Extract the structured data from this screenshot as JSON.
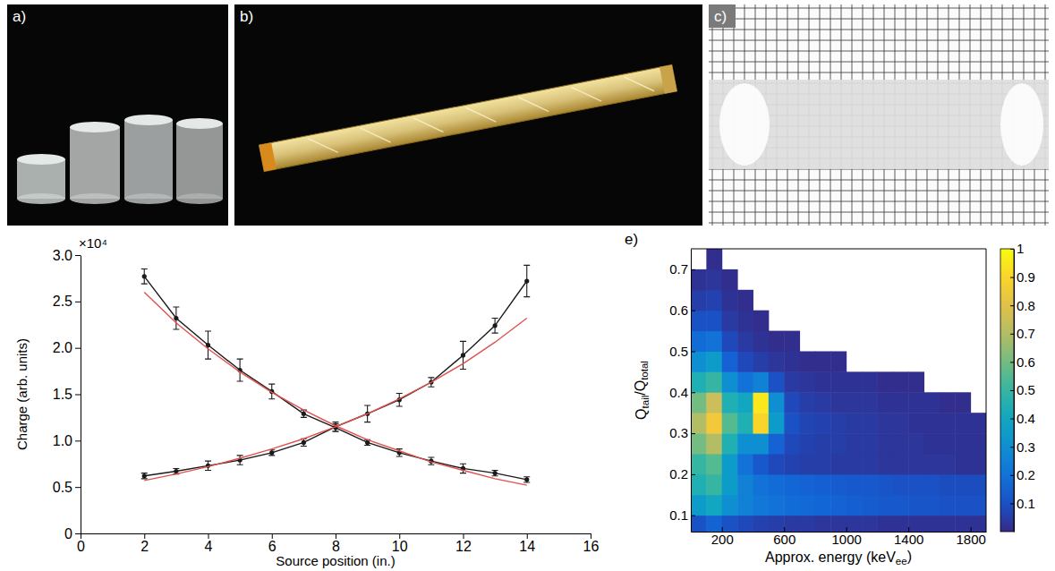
{
  "images": [
    {
      "label": "a)"
    },
    {
      "label": "b)"
    },
    {
      "label": "c)"
    }
  ],
  "chart_data": [
    {
      "type": "line",
      "x_label": "Source position (in.)",
      "y_label": "Charge (arb. units)",
      "annotations": [
        "×10⁴"
      ],
      "x": [
        2,
        3,
        4,
        5,
        6,
        7,
        8,
        9,
        10,
        11,
        12,
        13,
        14
      ],
      "xlim": [
        0,
        16
      ],
      "xticks": [
        0,
        2,
        4,
        6,
        8,
        10,
        12,
        14,
        16
      ],
      "ylim": [
        0,
        3
      ],
      "yticks": [
        0,
        0.5,
        {
          "value": 1,
          "label": "1.0"
        },
        1.5,
        {
          "value": 2,
          "label": "2.0"
        },
        2.5,
        {
          "value": 3,
          "label": "3.0"
        }
      ],
      "series": [
        {
          "color": "#1a1a1a",
          "marker": "circle",
          "line_style": "solid",
          "values": [
            2.77,
            2.32,
            2.03,
            1.76,
            1.53,
            1.29,
            1.14,
            0.98,
            0.87,
            0.78,
            0.7,
            0.65,
            0.58
          ],
          "errors": [
            0.08,
            0.12,
            0.15,
            0.12,
            0.08,
            0.04,
            0.04,
            0.03,
            0.04,
            0.04,
            0.05,
            0.03,
            0.03
          ]
        },
        {
          "color": "#1a1a1a",
          "marker": "circle",
          "line_style": "solid",
          "values": [
            0.62,
            0.67,
            0.73,
            0.79,
            0.87,
            0.98,
            1.15,
            1.29,
            1.44,
            1.63,
            1.92,
            2.24,
            2.72
          ],
          "errors": [
            0.03,
            0.03,
            0.05,
            0.05,
            0.03,
            0.04,
            0.05,
            0.09,
            0.07,
            0.05,
            0.15,
            0.08,
            0.17
          ]
        },
        {
          "color": "#e0524f",
          "line_style": "solid",
          "values": [
            2.6,
            2.27,
            1.99,
            1.74,
            1.52,
            1.33,
            1.16,
            1.01,
            0.89,
            0.77,
            0.68,
            0.59,
            0.52
          ]
        },
        {
          "color": "#e0524f",
          "line_style": "solid",
          "values": [
            0.57,
            0.64,
            0.72,
            0.81,
            0.91,
            1.02,
            1.15,
            1.29,
            1.45,
            1.63,
            1.83,
            2.06,
            2.32
          ]
        }
      ]
    },
    {
      "type": "heatmap",
      "panel_label": "e)",
      "x_label": [
        {
          "text": "Approx. energy (keV"
        },
        {
          "text": "ee",
          "sub": true
        },
        {
          "text": ")"
        }
      ],
      "y_label": [
        {
          "text": "Q"
        },
        {
          "text": "tail",
          "sub": true
        },
        {
          "text": "/Q"
        },
        {
          "text": "total",
          "sub": true
        }
      ],
      "xlim": [
        0,
        1900
      ],
      "xticks": [
        200,
        600,
        1000,
        1400,
        1800
      ],
      "ylim": [
        0.06,
        0.75
      ],
      "yticks": [
        0.1,
        0.2,
        0.3,
        0.4,
        0.5,
        0.6,
        0.7
      ],
      "x_bins": [
        0,
        100,
        200,
        300,
        400,
        500,
        600,
        700,
        800,
        900,
        1000,
        1100,
        1200,
        1300,
        1400,
        1500,
        1600,
        1700,
        1800,
        1900
      ],
      "y_bins": [
        0.05,
        0.1,
        0.15,
        0.2,
        0.25,
        0.3,
        0.35,
        0.4,
        0.45,
        0.5,
        0.55,
        0.6,
        0.65,
        0.7,
        0.75
      ],
      "cells": [
        [
          0.1,
          0.15,
          0.1,
          0.08,
          0.06,
          0.05,
          0.04,
          0.04,
          0.03,
          0.03,
          0.03,
          0.03,
          0.02,
          0.02,
          0.02,
          0.02,
          0.02,
          0.02,
          0.02
        ],
        [
          0.35,
          0.4,
          0.3,
          0.25,
          0.22,
          0.2,
          0.18,
          0.17,
          0.16,
          0.15,
          0.14,
          0.13,
          0.12,
          0.12,
          0.11,
          0.11,
          0.1,
          0.1,
          0.1
        ],
        [
          0.45,
          0.5,
          0.35,
          0.25,
          0.2,
          0.18,
          0.16,
          0.15,
          0.14,
          0.13,
          0.12,
          0.12,
          0.11,
          0.1,
          0.1,
          0.1,
          0.09,
          0.09,
          0.09
        ],
        [
          0.5,
          0.55,
          0.35,
          0.2,
          0.12,
          0.08,
          0.06,
          0.05,
          0.05,
          0.04,
          0.04,
          0.04,
          0.03,
          0.03,
          0.03,
          0.03,
          0.03,
          0.02,
          0.02
        ],
        [
          0.6,
          0.7,
          0.45,
          0.3,
          0.3,
          0.15,
          0.08,
          0.06,
          0.05,
          0.05,
          0.04,
          0.04,
          0.03,
          0.03,
          0.03,
          0.02,
          0.02,
          0.02,
          0.02
        ],
        [
          0.7,
          0.85,
          0.55,
          0.45,
          0.9,
          0.35,
          0.1,
          0.07,
          0.06,
          0.05,
          0.04,
          0.04,
          0.03,
          0.03,
          0.02,
          0.02,
          0.02,
          0.02,
          0.02
        ],
        [
          0.6,
          0.75,
          0.45,
          0.4,
          0.95,
          0.3,
          0.08,
          0.05,
          0.04,
          0.03,
          0.03,
          0.03,
          0.02,
          0.02,
          0.02,
          0.02,
          0.01,
          0.01,
          null
        ],
        [
          0.45,
          0.5,
          0.3,
          0.2,
          0.25,
          0.1,
          0.04,
          0.03,
          0.02,
          0.02,
          0.02,
          0.02,
          0.01,
          0.01,
          0.01,
          null,
          null,
          null,
          null
        ],
        [
          0.3,
          0.35,
          0.15,
          0.08,
          0.05,
          0.03,
          0.02,
          0.01,
          0.01,
          0.01,
          null,
          null,
          null,
          null,
          null,
          null,
          null,
          null,
          null
        ],
        [
          0.18,
          0.2,
          0.08,
          0.04,
          0.02,
          0.01,
          0.01,
          null,
          null,
          null,
          null,
          null,
          null,
          null,
          null,
          null,
          null,
          null,
          null
        ],
        [
          0.1,
          0.1,
          0.04,
          0.02,
          0.01,
          null,
          null,
          null,
          null,
          null,
          null,
          null,
          null,
          null,
          null,
          null,
          null,
          null,
          null
        ],
        [
          0.05,
          0.06,
          0.02,
          0.01,
          null,
          null,
          null,
          null,
          null,
          null,
          null,
          null,
          null,
          null,
          null,
          null,
          null,
          null,
          null
        ],
        [
          0.02,
          0.03,
          0.01,
          null,
          null,
          null,
          null,
          null,
          null,
          null,
          null,
          null,
          null,
          null,
          null,
          null,
          null,
          null,
          null
        ],
        [
          null,
          0.01,
          null,
          null,
          null,
          null,
          null,
          null,
          null,
          null,
          null,
          null,
          null,
          null,
          null,
          null,
          null,
          null,
          null
        ]
      ],
      "colorbar_range": [
        0,
        1
      ],
      "colorbar_ticks": [
        0.1,
        0.2,
        0.3,
        0.4,
        0.5,
        0.6,
        0.7,
        0.8,
        0.9,
        1
      ]
    }
  ]
}
